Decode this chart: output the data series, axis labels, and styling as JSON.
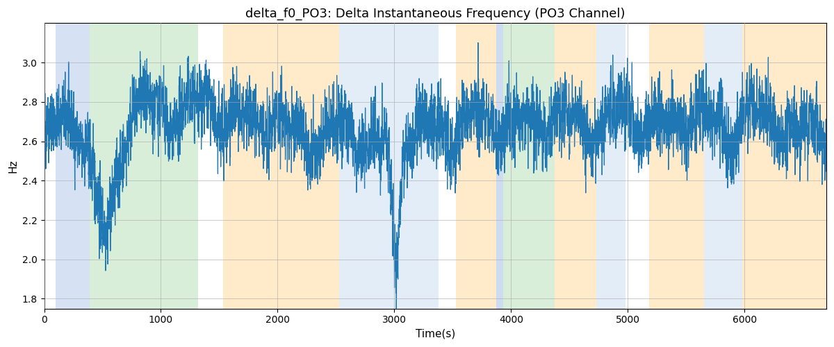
{
  "title": "delta_f0_PO3: Delta Instantaneous Frequency (PO3 Channel)",
  "xlabel": "Time(s)",
  "ylabel": "Hz",
  "ylim": [
    1.75,
    3.2
  ],
  "xlim": [
    0,
    6700
  ],
  "line_color": "#1f77b4",
  "line_width": 0.9,
  "background_regions": [
    {
      "xstart": 100,
      "xend": 390,
      "color": "#aec6e8",
      "alpha": 0.5
    },
    {
      "xstart": 390,
      "xend": 1320,
      "color": "#b2dfb2",
      "alpha": 0.5
    },
    {
      "xstart": 1530,
      "xend": 2530,
      "color": "#ffd9a0",
      "alpha": 0.55
    },
    {
      "xstart": 2530,
      "xend": 3380,
      "color": "#c8dcf0",
      "alpha": 0.5
    },
    {
      "xstart": 3530,
      "xend": 3870,
      "color": "#ffd9a0",
      "alpha": 0.55
    },
    {
      "xstart": 3870,
      "xend": 3930,
      "color": "#aec6e8",
      "alpha": 0.6
    },
    {
      "xstart": 3930,
      "xend": 4370,
      "color": "#b2dfb2",
      "alpha": 0.5
    },
    {
      "xstart": 4370,
      "xend": 4730,
      "color": "#ffd9a0",
      "alpha": 0.55
    },
    {
      "xstart": 4730,
      "xend": 4980,
      "color": "#c8dcf0",
      "alpha": 0.5
    },
    {
      "xstart": 5180,
      "xend": 5650,
      "color": "#ffd9a0",
      "alpha": 0.55
    },
    {
      "xstart": 5650,
      "xend": 5980,
      "color": "#c8dcf0",
      "alpha": 0.5
    },
    {
      "xstart": 5980,
      "xend": 6700,
      "color": "#ffd9a0",
      "alpha": 0.55
    }
  ],
  "grid_color": "#aaaaaa",
  "grid_alpha": 0.7,
  "yticks": [
    1.8,
    2.0,
    2.2,
    2.4,
    2.6,
    2.8,
    3.0
  ],
  "xticks": [
    0,
    1000,
    2000,
    3000,
    4000,
    5000,
    6000
  ],
  "seed": 42,
  "n_points": 6700,
  "title_fontsize": 13
}
